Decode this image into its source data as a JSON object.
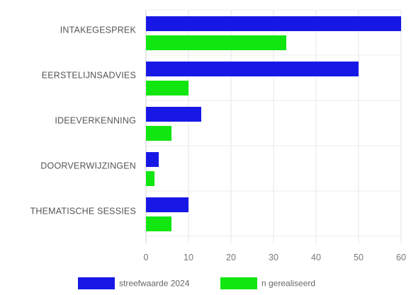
{
  "chart_data": {
    "type": "bar",
    "orientation": "horizontal",
    "categories": [
      "INTAKEGESPREK",
      "EERSTELIJNSADVIES",
      "IDEEVERKENNING",
      "DOORVERWIJZINGEN",
      "THEMATISCHE SESSIES"
    ],
    "series": [
      {
        "name": "streefwaarde 2024",
        "values": [
          60,
          50,
          13,
          3,
          10
        ],
        "color": "#1818e6"
      },
      {
        "name": "n gerealiseerd",
        "values": [
          33,
          10,
          6,
          2,
          6
        ],
        "color": "#11e611"
      }
    ],
    "xlim": [
      0,
      60
    ],
    "x_ticks": [
      "0",
      "10",
      "20",
      "30",
      "40",
      "50",
      "60"
    ],
    "title": "",
    "xlabel": "",
    "ylabel": "",
    "grid": true,
    "legend_position": "bottom"
  }
}
